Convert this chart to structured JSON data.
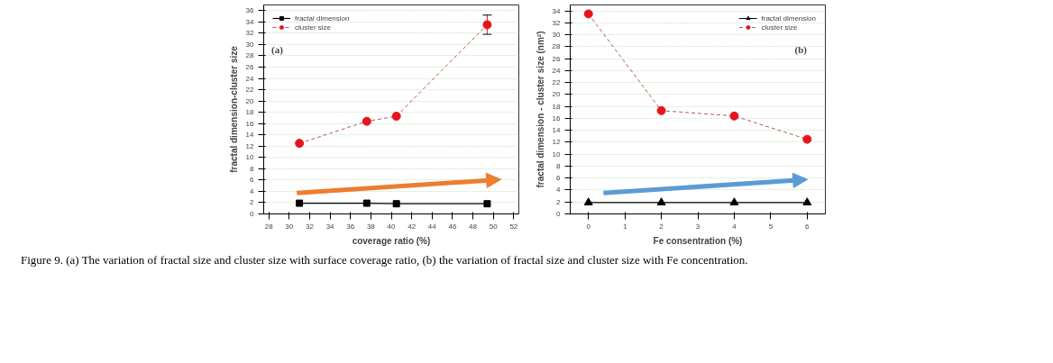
{
  "chart_data": [
    {
      "type": "line",
      "xlabel": "coverage ratio (%)",
      "ylabel": "fractal dimension-cluster size",
      "x": [
        31.0,
        37.6,
        40.5,
        49.4
      ],
      "series": [
        {
          "name": "fractal dimension",
          "color": "#000000",
          "values": [
            1.9,
            1.9,
            1.8,
            1.8
          ],
          "marker": "square",
          "line_style": "solid"
        },
        {
          "name": "cluster size",
          "color": "#e8141b",
          "values": [
            12.5,
            16.4,
            17.3,
            33.5
          ],
          "errors": [
            null,
            null,
            null,
            1.7
          ],
          "marker": "circle",
          "line_style": "dashed"
        }
      ],
      "xlim": [
        27.5,
        52.5
      ],
      "xticks": [
        28,
        30,
        32,
        34,
        36,
        38,
        40,
        42,
        44,
        46,
        48,
        50,
        52
      ],
      "ylim": [
        0,
        37
      ],
      "yticks": [
        0,
        2,
        4,
        6,
        8,
        10,
        12,
        14,
        16,
        18,
        20,
        22,
        24,
        26,
        28,
        30,
        32,
        34,
        36
      ],
      "grid": "y",
      "legend": "top left",
      "annotations": [
        "(a)",
        "Figure 9. (a) The variation of fractal size and cluster size with surface coverage ratio, (b) the variation of fractal size and cluster size with Fe concentration."
      ]
    },
    {
      "type": "line",
      "xlabel": "Fe consentration (%)",
      "ylabel": "fractal dimension - cluster size (nm²)",
      "x": [
        0,
        2,
        4,
        6
      ],
      "series": [
        {
          "name": "fractal dimension",
          "color": "#000000",
          "values": [
            1.9,
            1.9,
            1.9,
            1.9
          ],
          "marker": "triangle",
          "line_style": "solid"
        },
        {
          "name": "cluster size",
          "color": "#e8141b",
          "values": [
            33.5,
            17.3,
            16.4,
            12.5
          ],
          "marker": "circle",
          "line_style": "dashed"
        }
      ],
      "xlim": [
        -0.5,
        6.5
      ],
      "xticks": [
        0,
        1,
        2,
        3,
        4,
        5,
        6
      ],
      "ylim": [
        0,
        35
      ],
      "yticks": [
        0,
        2,
        4,
        6,
        8,
        10,
        12,
        14,
        16,
        18,
        20,
        22,
        24,
        26,
        28,
        30,
        32,
        34
      ],
      "grid": "y",
      "legend": "top right",
      "annotations": [
        "(b)"
      ]
    }
  ]
}
